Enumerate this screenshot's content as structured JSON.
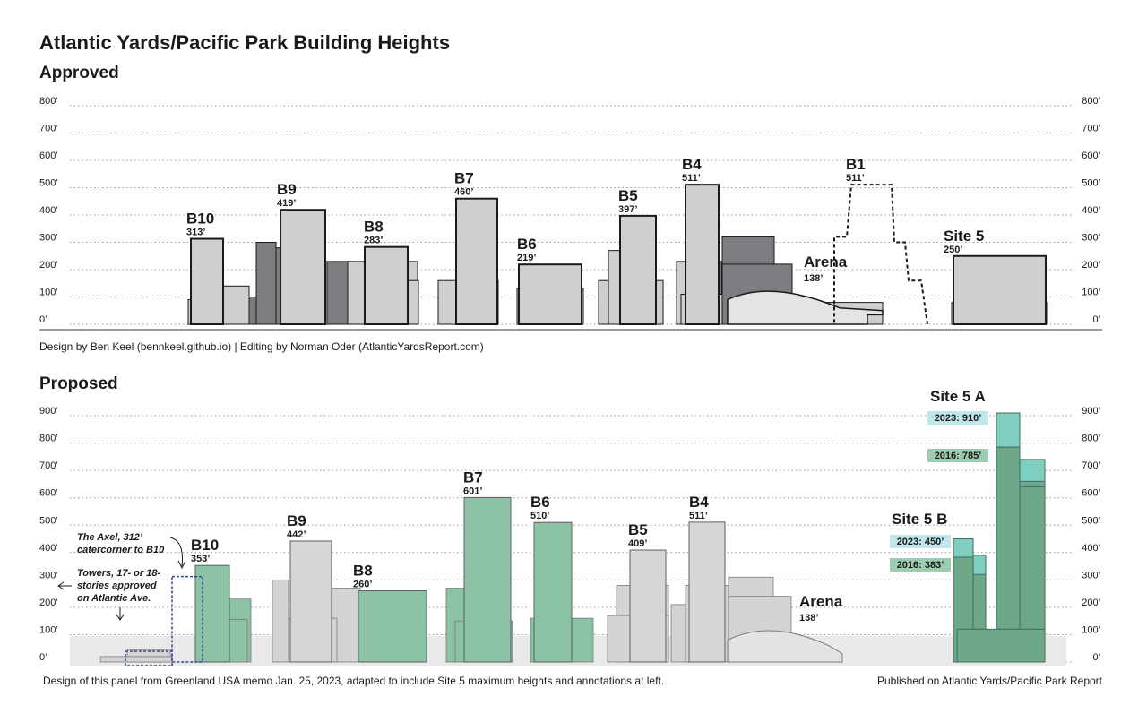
{
  "title": "Atlantic Yards/Pacific Park Building Heights",
  "colors": {
    "grey_fill": "#cfcfcf",
    "grey_dark": "#7b7d80",
    "green_fill": "#8cc2a6",
    "green_dark": "#6fa78b",
    "teal_top": "#7ecfc1",
    "pill_teal": "#bfe6ea",
    "pill_green": "#9ccdb0",
    "outline": "#1a1a1a"
  },
  "chart_data": [
    {
      "type": "bar",
      "title": "Approved",
      "y_unit": "feet",
      "ylim": [
        0,
        800
      ],
      "yticks": [
        "0’",
        "100’",
        "200’",
        "300’",
        "400’",
        "500’",
        "600’",
        "700’",
        "800’"
      ],
      "grid": true,
      "buildings": [
        {
          "name": "B10",
          "height": 313,
          "label": "313’"
        },
        {
          "name": "B9",
          "height": 419,
          "label": "419’"
        },
        {
          "name": "B8",
          "height": 283,
          "label": "283’"
        },
        {
          "name": "B7",
          "height": 460,
          "label": "460’"
        },
        {
          "name": "B6",
          "height": 219,
          "label": "219’"
        },
        {
          "name": "B5",
          "height": 397,
          "label": "397’"
        },
        {
          "name": "B4",
          "height": 511,
          "label": "511’"
        },
        {
          "name": "Arena",
          "height": 138,
          "label": "138’"
        },
        {
          "name": "B1",
          "height": 511,
          "label": "511’",
          "style": "dashed"
        },
        {
          "name": "Site 5",
          "height": 250,
          "label": "250’"
        }
      ],
      "credit": "Design by Ben Keel (bennkeel.github.io) | Editing by Norman Oder (AtlanticYardsReport.com)"
    },
    {
      "type": "bar",
      "title": "Proposed",
      "y_unit": "feet",
      "ylim": [
        0,
        900
      ],
      "yticks": [
        "0’",
        "100’",
        "200’",
        "300’",
        "400’",
        "500’",
        "600’",
        "700’",
        "800’",
        "900’"
      ],
      "grid": true,
      "buildings": [
        {
          "name": "B10",
          "height": 353,
          "label": "353’"
        },
        {
          "name": "B9",
          "height": 442,
          "label": "442’"
        },
        {
          "name": "B8",
          "height": 260,
          "label": "260’"
        },
        {
          "name": "B7",
          "height": 601,
          "label": "601’"
        },
        {
          "name": "B6",
          "height": 510,
          "label": "510’"
        },
        {
          "name": "B5",
          "height": 409,
          "label": "409’"
        },
        {
          "name": "B4",
          "height": 511,
          "label": "511’"
        },
        {
          "name": "Arena",
          "height": 138,
          "label": "138’"
        }
      ],
      "site5": [
        {
          "name": "Site 5 B",
          "value_2023": 450,
          "label_2023": "2023: 450’",
          "value_2016": 383,
          "label_2016": "2016: 383’"
        },
        {
          "name": "Site 5 A",
          "value_2023": 910,
          "label_2023": "2023: 910’",
          "value_2016": 785,
          "label_2016": "2016: 785’"
        }
      ],
      "annotations": [
        {
          "text": [
            "The Axel, 312’",
            "catercorner to B10"
          ],
          "height": 312
        },
        {
          "text": [
            "Towers, 17- or 18-",
            "stories approved",
            "on Atlantic Ave."
          ]
        }
      ],
      "credit_left": "Design of this panel from Greenland USA memo Jan. 25, 2023, adapted to include Site 5 maximum heights and annotations at left.",
      "credit_right": "Published on Atlantic Yards/Pacific Park Report"
    }
  ]
}
